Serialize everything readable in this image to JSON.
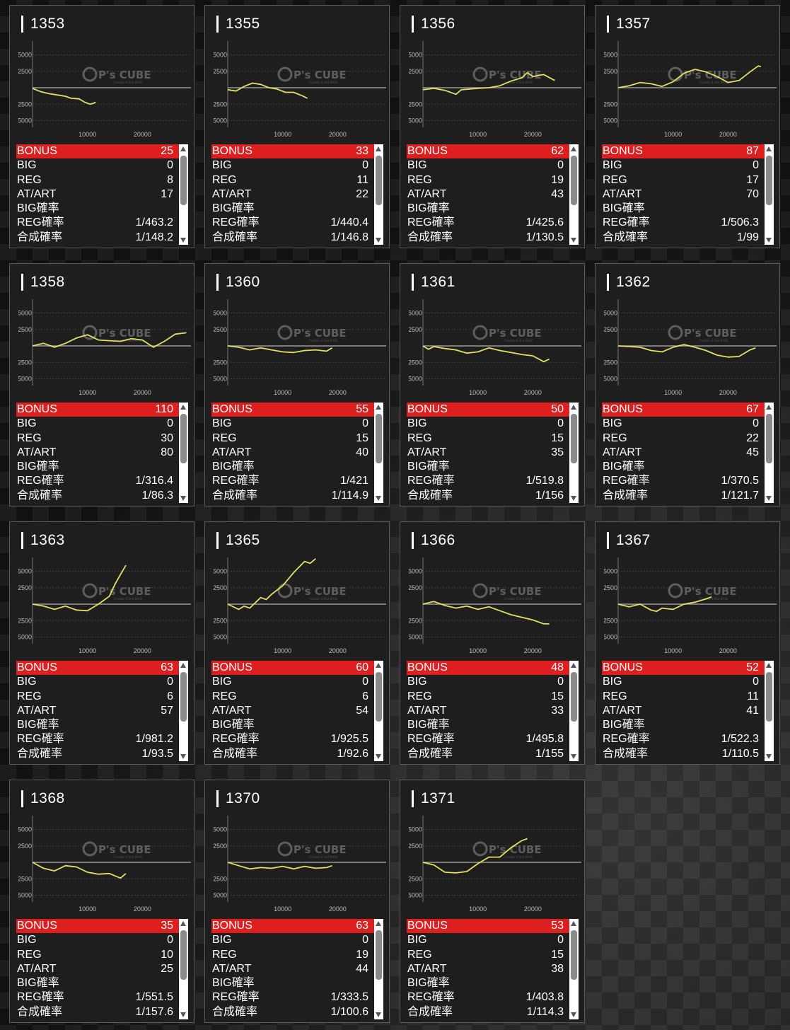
{
  "labels": {
    "bonus": "BONUS",
    "big": "BIG",
    "reg": "REG",
    "atart": "AT/ART",
    "big_prob": "BIG確率",
    "reg_prob": "REG確率",
    "total_prob": "合成確率"
  },
  "axis": {
    "y_ticks": [
      "5000",
      "2500",
      "-2500",
      "-5000"
    ],
    "x_ticks": [
      "10000",
      "20000"
    ]
  },
  "watermark": {
    "main": "P's CUBE",
    "sub": "Fondale 8 Slot BASE"
  },
  "colors": {
    "line": "#e5e060",
    "bonus_bg": "#dd1f1f",
    "card_bg": "#1e1e1e"
  },
  "machines": [
    {
      "no": "1353",
      "bonus": "25",
      "big": "0",
      "reg": "8",
      "atart": "17",
      "big_prob": "",
      "reg_prob": "1/463.2",
      "total_prob": "1/148.2",
      "chart_data": {
        "type": "line",
        "x": [
          0,
          1500,
          3000,
          4500,
          6000,
          7000,
          8500,
          9500,
          10500,
          11000,
          11500
        ],
        "y": [
          -100,
          -600,
          -900,
          -1100,
          -1300,
          -1600,
          -1700,
          -2200,
          -2500,
          -2400,
          -2200
        ],
        "xlim": [
          0,
          30000
        ],
        "ylim": [
          -6000,
          6000
        ]
      }
    },
    {
      "no": "1355",
      "bonus": "33",
      "big": "0",
      "reg": "11",
      "atart": "22",
      "big_prob": "",
      "reg_prob": "1/440.4",
      "total_prob": "1/146.8",
      "chart_data": {
        "type": "line",
        "x": [
          0,
          1500,
          3000,
          4500,
          6000,
          7500,
          9000,
          10500,
          12000,
          13500,
          14500
        ],
        "y": [
          -300,
          -500,
          200,
          700,
          500,
          0,
          -200,
          -700,
          -700,
          -1200,
          -1600
        ],
        "xlim": [
          0,
          30000
        ],
        "ylim": [
          -6000,
          6000
        ]
      }
    },
    {
      "no": "1356",
      "bonus": "62",
      "big": "0",
      "reg": "19",
      "atart": "43",
      "big_prob": "",
      "reg_prob": "1/425.6",
      "total_prob": "1/130.5",
      "chart_data": {
        "type": "line",
        "x": [
          0,
          2000,
          4000,
          6000,
          7000,
          8500,
          10000,
          12000,
          14000,
          16000,
          18000,
          19000,
          20000,
          22000,
          24000
        ],
        "y": [
          -300,
          -100,
          -400,
          -1000,
          -300,
          -200,
          -100,
          0,
          300,
          1000,
          1500,
          2300,
          1700,
          2000,
          1100
        ],
        "xlim": [
          0,
          30000
        ],
        "ylim": [
          -6000,
          6000
        ]
      }
    },
    {
      "no": "1357",
      "bonus": "87",
      "big": "0",
      "reg": "17",
      "atart": "70",
      "big_prob": "",
      "reg_prob": "1/506.3",
      "total_prob": "1/99",
      "chart_data": {
        "type": "line",
        "x": [
          0,
          2000,
          4000,
          6000,
          8000,
          10000,
          12000,
          14000,
          16000,
          18000,
          20000,
          22000,
          24000,
          25500,
          26000
        ],
        "y": [
          0,
          300,
          800,
          600,
          200,
          900,
          2200,
          2800,
          2400,
          1700,
          800,
          1100,
          2400,
          3300,
          3200
        ],
        "xlim": [
          0,
          30000
        ],
        "ylim": [
          -6000,
          6000
        ]
      }
    },
    {
      "no": "1358",
      "bonus": "110",
      "big": "0",
      "reg": "30",
      "atart": "80",
      "big_prob": "",
      "reg_prob": "1/316.4",
      "total_prob": "1/86.3",
      "chart_data": {
        "type": "line",
        "x": [
          0,
          2000,
          4000,
          6000,
          8000,
          10000,
          12000,
          14000,
          16000,
          18000,
          20000,
          22000,
          24000,
          26000,
          28000
        ],
        "y": [
          0,
          400,
          -200,
          400,
          1200,
          1700,
          900,
          800,
          700,
          1100,
          900,
          -200,
          700,
          1800,
          2000
        ],
        "xlim": [
          0,
          30000
        ],
        "ylim": [
          -6000,
          6000
        ]
      }
    },
    {
      "no": "1360",
      "bonus": "55",
      "big": "0",
      "reg": "15",
      "atart": "40",
      "big_prob": "",
      "reg_prob": "1/421",
      "total_prob": "1/114.9",
      "chart_data": {
        "type": "line",
        "x": [
          0,
          2000,
          4000,
          6000,
          8000,
          10000,
          12000,
          14000,
          16000,
          18000,
          19000
        ],
        "y": [
          0,
          -200,
          -600,
          -300,
          -600,
          -900,
          -1000,
          -700,
          -600,
          -800,
          -300
        ],
        "xlim": [
          0,
          30000
        ],
        "ylim": [
          -6000,
          6000
        ]
      }
    },
    {
      "no": "1361",
      "bonus": "50",
      "big": "0",
      "reg": "15",
      "atart": "35",
      "big_prob": "",
      "reg_prob": "1/519.8",
      "total_prob": "1/156",
      "chart_data": {
        "type": "line",
        "x": [
          0,
          1000,
          2000,
          4000,
          6000,
          8000,
          10000,
          12000,
          14000,
          16000,
          18000,
          20000,
          22000,
          23000
        ],
        "y": [
          0,
          -500,
          -100,
          -400,
          -600,
          -1100,
          -900,
          -300,
          -700,
          -1000,
          -1300,
          -1500,
          -2400,
          -2000
        ],
        "xlim": [
          0,
          30000
        ],
        "ylim": [
          -6000,
          6000
        ]
      }
    },
    {
      "no": "1362",
      "bonus": "67",
      "big": "0",
      "reg": "22",
      "atart": "45",
      "big_prob": "",
      "reg_prob": "1/370.5",
      "total_prob": "1/121.7",
      "chart_data": {
        "type": "line",
        "x": [
          0,
          2000,
          4000,
          6000,
          8000,
          10000,
          12000,
          14000,
          16000,
          18000,
          20000,
          22000,
          24000,
          25000
        ],
        "y": [
          0,
          -100,
          -200,
          -700,
          -900,
          -200,
          200,
          -200,
          -700,
          -1400,
          -1700,
          -1600,
          -600,
          -300
        ],
        "xlim": [
          0,
          30000
        ],
        "ylim": [
          -6000,
          6000
        ]
      }
    },
    {
      "no": "1363",
      "bonus": "63",
      "big": "0",
      "reg": "6",
      "atart": "57",
      "big_prob": "",
      "reg_prob": "1/981.2",
      "total_prob": "1/93.5",
      "chart_data": {
        "type": "line",
        "x": [
          0,
          2000,
          4000,
          6000,
          8000,
          10000,
          12000,
          14000,
          15000,
          16000,
          17000
        ],
        "y": [
          0,
          -300,
          -800,
          -300,
          -900,
          -1000,
          0,
          1200,
          3000,
          4500,
          5900
        ],
        "xlim": [
          0,
          30000
        ],
        "ylim": [
          -6000,
          6000
        ]
      }
    },
    {
      "no": "1365",
      "bonus": "60",
      "big": "0",
      "reg": "6",
      "atart": "54",
      "big_prob": "",
      "reg_prob": "1/925.5",
      "total_prob": "1/92.6",
      "chart_data": {
        "type": "line",
        "x": [
          0,
          2000,
          3000,
          4000,
          6000,
          7000,
          8000,
          10000,
          12000,
          14000,
          15000,
          16000
        ],
        "y": [
          0,
          -800,
          -300,
          -600,
          1000,
          700,
          1500,
          2800,
          4800,
          6500,
          6200,
          6900
        ],
        "xlim": [
          0,
          30000
        ],
        "ylim": [
          -6000,
          6000
        ]
      }
    },
    {
      "no": "1366",
      "bonus": "48",
      "big": "0",
      "reg": "15",
      "atart": "33",
      "big_prob": "",
      "reg_prob": "1/495.8",
      "total_prob": "1/155",
      "chart_data": {
        "type": "line",
        "x": [
          0,
          2000,
          4000,
          6000,
          8000,
          10000,
          12000,
          14000,
          16000,
          18000,
          20000,
          22000,
          23000
        ],
        "y": [
          0,
          400,
          -200,
          -600,
          -300,
          -800,
          -400,
          -1000,
          -1600,
          -2000,
          -2400,
          -3000,
          -3000
        ],
        "xlim": [
          0,
          30000
        ],
        "ylim": [
          -6000,
          6000
        ]
      }
    },
    {
      "no": "1367",
      "bonus": "52",
      "big": "0",
      "reg": "11",
      "atart": "41",
      "big_prob": "",
      "reg_prob": "1/522.3",
      "total_prob": "1/110.5",
      "chart_data": {
        "type": "line",
        "x": [
          0,
          2000,
          4000,
          6000,
          7000,
          8000,
          10000,
          12000,
          14000,
          16000,
          17000
        ],
        "y": [
          0,
          -400,
          0,
          -900,
          -1100,
          -600,
          -800,
          0,
          300,
          800,
          1100
        ],
        "xlim": [
          0,
          30000
        ],
        "ylim": [
          -6000,
          6000
        ]
      }
    },
    {
      "no": "1368",
      "bonus": "35",
      "big": "0",
      "reg": "10",
      "atart": "25",
      "big_prob": "",
      "reg_prob": "1/551.5",
      "total_prob": "1/157.6",
      "chart_data": {
        "type": "line",
        "x": [
          0,
          2000,
          4000,
          6000,
          8000,
          10000,
          12000,
          14000,
          16000,
          17000
        ],
        "y": [
          0,
          -900,
          -1300,
          -500,
          -700,
          -1500,
          -1800,
          -1700,
          -2400,
          -1700
        ],
        "xlim": [
          0,
          30000
        ],
        "ylim": [
          -6000,
          6000
        ]
      }
    },
    {
      "no": "1370",
      "bonus": "63",
      "big": "0",
      "reg": "19",
      "atart": "44",
      "big_prob": "",
      "reg_prob": "1/333.5",
      "total_prob": "1/100.6",
      "chart_data": {
        "type": "line",
        "x": [
          0,
          2000,
          4000,
          6000,
          8000,
          10000,
          12000,
          14000,
          16000,
          18000,
          19000
        ],
        "y": [
          0,
          -500,
          -1000,
          -800,
          -900,
          -600,
          -1000,
          -600,
          -900,
          -800,
          -500
        ],
        "xlim": [
          0,
          30000
        ],
        "ylim": [
          -6000,
          6000
        ]
      }
    },
    {
      "no": "1371",
      "bonus": "53",
      "big": "0",
      "reg": "15",
      "atart": "38",
      "big_prob": "",
      "reg_prob": "1/403.8",
      "total_prob": "1/114.3",
      "chart_data": {
        "type": "line",
        "x": [
          0,
          2000,
          4000,
          6000,
          8000,
          10000,
          12000,
          14000,
          16000,
          18000,
          19000
        ],
        "y": [
          0,
          -400,
          -1500,
          -1600,
          -1400,
          -200,
          800,
          800,
          2200,
          3300,
          3600
        ],
        "xlim": [
          0,
          30000
        ],
        "ylim": [
          -6000,
          6000
        ]
      }
    }
  ]
}
